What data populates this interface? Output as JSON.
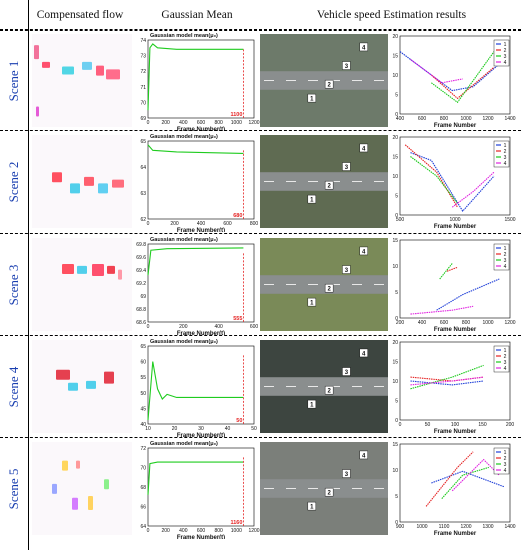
{
  "headers": {
    "col1": "Compensated flow",
    "col2": "Gaussian Mean",
    "col3": "Vehicle speed Estimation results"
  },
  "scenes": [
    {
      "label": "Scene 1",
      "gauss": {
        "title": "Gaussian model mean(μ₀)",
        "xlabel": "Frame Number(t)",
        "yticks": [
          "69",
          "70",
          "71",
          "72",
          "73",
          "74"
        ],
        "xticks": [
          "0",
          "200",
          "400",
          "600",
          "800",
          "1000",
          "1200"
        ],
        "end_label": "1100"
      },
      "speed": {
        "ylabel": "Speed(m/s)",
        "xlabel": "Frame Number",
        "yticks": [
          "0",
          "5",
          "10",
          "15",
          "20"
        ],
        "xticks": [
          "400",
          "600",
          "800",
          "1000",
          "1200",
          "1400"
        ],
        "legend": [
          "1",
          "2",
          "3",
          "4"
        ]
      },
      "overlays": [
        "1",
        "2",
        "3",
        "4"
      ]
    },
    {
      "label": "Scene 2",
      "gauss": {
        "title": "Gaussian model mean(μ₀)",
        "xlabel": "Frame Number(t)",
        "yticks": [
          "62",
          "63",
          "64",
          "65"
        ],
        "xticks": [
          "0",
          "200",
          "400",
          "600",
          "800"
        ],
        "end_label": "680"
      },
      "speed": {
        "ylabel": "Speed(m/s)",
        "xlabel": "Frame Number",
        "yticks": [
          "0",
          "5",
          "10",
          "15",
          "20"
        ],
        "xticks": [
          "500",
          "1000",
          "1500"
        ],
        "legend": [
          "1",
          "2",
          "3",
          "4"
        ]
      },
      "overlays": [
        "1",
        "2",
        "3",
        "4"
      ]
    },
    {
      "label": "Scene 3",
      "gauss": {
        "title": "Gaussian model mean(μ₀)",
        "xlabel": "Frame Number(t)",
        "yticks": [
          "68.6",
          "68.8",
          "69",
          "69.2",
          "69.4",
          "69.6",
          "69.8"
        ],
        "xticks": [
          "0",
          "200",
          "400",
          "600"
        ],
        "end_label": "555"
      },
      "speed": {
        "ylabel": "Speed(m/s)",
        "xlabel": "Frame Number",
        "yticks": [
          "0",
          "5",
          "10",
          "15"
        ],
        "xticks": [
          "200",
          "400",
          "600",
          "800",
          "1000",
          "1200"
        ],
        "legend": [
          "1",
          "2",
          "3",
          "4"
        ]
      },
      "overlays": [
        "1",
        "2",
        "3",
        "4"
      ]
    },
    {
      "label": "Scene 4",
      "gauss": {
        "title": "Gaussian model mean(μ₀)",
        "xlabel": "Frame Number(t)",
        "yticks": [
          "40",
          "45",
          "50",
          "55",
          "60",
          "65"
        ],
        "xticks": [
          "10",
          "20",
          "30",
          "40",
          "50"
        ],
        "end_label": "50"
      },
      "speed": {
        "ylabel": "Speed(m/s)",
        "xlabel": "Frame Number",
        "yticks": [
          "0",
          "5",
          "10",
          "15",
          "20"
        ],
        "xticks": [
          "0",
          "50",
          "100",
          "150",
          "200"
        ],
        "legend": [
          "1",
          "2",
          "3",
          "4"
        ]
      },
      "overlays": [
        "1",
        "2",
        "3",
        "4"
      ]
    },
    {
      "label": "Scene 5",
      "gauss": {
        "title": "Gaussian model mean(μ₀)",
        "xlabel": "Frame Number(t)",
        "yticks": [
          "64",
          "66",
          "68",
          "70",
          "72"
        ],
        "xticks": [
          "0",
          "200",
          "400",
          "600",
          "800",
          "1000",
          "1200"
        ],
        "end_label": "1160"
      },
      "speed": {
        "ylabel": "Speed(m/s)",
        "xlabel": "Frame Number",
        "yticks": [
          "0",
          "5",
          "10",
          "15"
        ],
        "xticks": [
          "900",
          "1000",
          "1100",
          "1200",
          "1300",
          "1400"
        ],
        "legend": [
          "1",
          "2",
          "3",
          "4"
        ]
      },
      "overlays": [
        "1",
        "2",
        "3",
        "4"
      ]
    }
  ],
  "colors": {
    "series": [
      "#1f3fd8",
      "#e52222",
      "#19c919",
      "#e020e0"
    ],
    "gauss_line": "#1fcc1f",
    "end_marker": "#e52222",
    "scene_label": "#1a3fb0"
  }
}
